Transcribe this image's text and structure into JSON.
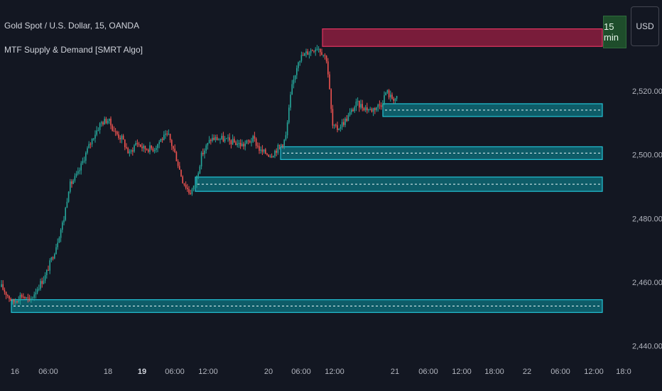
{
  "header": {
    "symbol_title": "Gold Spot / U.S. Dollar, 15, OANDA",
    "indicator_title": "MTF Supply & Demand [SMRT Algo]",
    "timeframe_badge": "15 min",
    "currency_button": "USD"
  },
  "colors": {
    "background": "#131722",
    "up_candle": "#26a69a",
    "down_candle": "#ef5350",
    "demand_zone_fill": "#0e7480",
    "demand_zone_border": "#22c3d6",
    "supply_zone_fill": "#8c1d3e",
    "supply_zone_border": "#e0355f",
    "zone_midline": "#e6f6f8",
    "timeframe_badge_bg": "#1e4d2b"
  },
  "chart_data": {
    "type": "candlestick",
    "title": "Gold Spot / U.S. Dollar, 15, OANDA",
    "ylim": [
      2437,
      2547
    ],
    "y_ticks": [
      2440,
      2460,
      2480,
      2500,
      2520
    ],
    "y_tick_labels": [
      "2,440.000",
      "2,460.000",
      "2,480.000",
      "2,500.000",
      "2,520.000"
    ],
    "x_tick_labels": [
      "16",
      "06:00",
      "18",
      "19",
      "06:00",
      "12:00",
      "20",
      "06:00",
      "12:00",
      "21",
      "06:00",
      "12:00",
      "18:00",
      "22",
      "06:00",
      "12:00",
      "18:0"
    ],
    "x_tick_bold": [
      "19"
    ],
    "price_path": [
      [
        0,
        2458.5
      ],
      [
        12,
        2455.0
      ],
      [
        16,
        2453.5
      ],
      [
        28,
        2456.0
      ],
      [
        40,
        2454.0
      ],
      [
        50,
        2458.0
      ],
      [
        62,
        2462.0
      ],
      [
        75,
        2470.0
      ],
      [
        88,
        2480.0
      ],
      [
        95,
        2490.0
      ],
      [
        108,
        2494.0
      ],
      [
        118,
        2500.0
      ],
      [
        130,
        2506.0
      ],
      [
        140,
        2510.0
      ],
      [
        150,
        2511.0
      ],
      [
        160,
        2507.0
      ],
      [
        170,
        2505.0
      ],
      [
        180,
        2500.0
      ],
      [
        190,
        2504.0
      ],
      [
        200,
        2502.0
      ],
      [
        215,
        2502.0
      ],
      [
        225,
        2505.0
      ],
      [
        235,
        2506.0
      ],
      [
        245,
        2500.0
      ],
      [
        255,
        2492.0
      ],
      [
        265,
        2488.0
      ],
      [
        272,
        2490.0
      ],
      [
        282,
        2500.0
      ],
      [
        295,
        2505.0
      ],
      [
        310,
        2505.0
      ],
      [
        325,
        2504.0
      ],
      [
        340,
        2503.0
      ],
      [
        355,
        2505.0
      ],
      [
        365,
        2501.0
      ],
      [
        380,
        2500.0
      ],
      [
        393,
        2503.0
      ],
      [
        400,
        2505.0
      ],
      [
        408,
        2520.0
      ],
      [
        418,
        2530.0
      ],
      [
        430,
        2532.0
      ],
      [
        445,
        2534.0
      ],
      [
        452,
        2532.0
      ],
      [
        458,
        2530.0
      ],
      [
        462,
        2520.0
      ],
      [
        466,
        2509.0
      ],
      [
        472,
        2508.0
      ],
      [
        485,
        2511.0
      ],
      [
        500,
        2516.0
      ],
      [
        520,
        2514.0
      ],
      [
        535,
        2516.0
      ],
      [
        542,
        2520.0
      ],
      [
        548,
        2518.0
      ],
      [
        558,
        2517.5
      ]
    ],
    "zones": [
      {
        "kind": "supply",
        "price_low": 2534.0,
        "price_high": 2539.5,
        "candle_start": 452
      },
      {
        "kind": "demand",
        "price_low": 2512.0,
        "price_high": 2516.0,
        "candle_start": 537
      },
      {
        "kind": "demand",
        "price_low": 2498.5,
        "price_high": 2502.5,
        "candle_start": 393
      },
      {
        "kind": "demand",
        "price_low": 2488.5,
        "price_high": 2493.0,
        "candle_start": 273
      },
      {
        "kind": "demand",
        "price_low": 2450.5,
        "price_high": 2454.5,
        "candle_start": 14
      }
    ]
  }
}
